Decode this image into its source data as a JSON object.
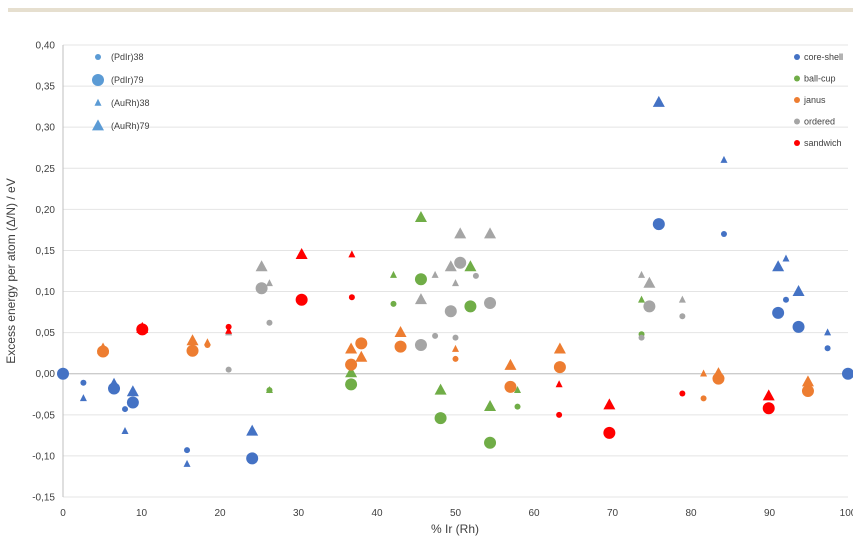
{
  "chart_data": {
    "type": "scatter",
    "xlabel": "% Ir (Rh)",
    "ylabel": "Excess energy per atom (Δ/N) / eV",
    "xlim": [
      0,
      100
    ],
    "ylim": [
      -0.15,
      0.4
    ],
    "x_ticks": [
      "0",
      "10",
      "20",
      "30",
      "40",
      "50",
      "60",
      "70",
      "80",
      "90",
      "100"
    ],
    "y_ticks": [
      "-0,15",
      "-0,10",
      "-0,05",
      "0,00",
      "0,05",
      "0,10",
      "0,15",
      "0,20",
      "0,25",
      "0,30",
      "0,35",
      "0,40"
    ],
    "grid": "horizontal",
    "legend_systems": {
      "placement": "top-left",
      "items": [
        {
          "label": "(PdIr)38",
          "marker": "circle",
          "size": "small"
        },
        {
          "label": "(PdIr)79",
          "marker": "circle",
          "size": "large"
        },
        {
          "label": "(AuRh)38",
          "marker": "triangle",
          "size": "small"
        },
        {
          "label": "(AuRh)79",
          "marker": "triangle",
          "size": "large"
        }
      ]
    },
    "legend_types": {
      "placement": "top-right",
      "items": [
        {
          "label": "core-shell",
          "color": "#4472c4"
        },
        {
          "label": "ball-cup",
          "color": "#70ad47"
        },
        {
          "label": "janus",
          "color": "#ed7d31"
        },
        {
          "label": "ordered",
          "color": "#a5a5a5"
        },
        {
          "label": "sandwich",
          "color": "#ff0000"
        }
      ]
    },
    "points": [
      {
        "x": 0,
        "y": 0.0,
        "type": "core-shell",
        "marker": "circle",
        "size": "large"
      },
      {
        "x": 2.6,
        "y": -0.011,
        "type": "core-shell",
        "marker": "circle",
        "size": "small"
      },
      {
        "x": 2.6,
        "y": -0.03,
        "type": "core-shell",
        "marker": "triangle",
        "size": "small"
      },
      {
        "x": 6.5,
        "y": -0.018,
        "type": "core-shell",
        "marker": "circle",
        "size": "large"
      },
      {
        "x": 6.5,
        "y": -0.013,
        "type": "core-shell",
        "marker": "triangle",
        "size": "large"
      },
      {
        "x": 7.9,
        "y": -0.043,
        "type": "core-shell",
        "marker": "circle",
        "size": "small"
      },
      {
        "x": 7.9,
        "y": -0.07,
        "type": "core-shell",
        "marker": "triangle",
        "size": "small"
      },
      {
        "x": 8.9,
        "y": -0.035,
        "type": "core-shell",
        "marker": "circle",
        "size": "large"
      },
      {
        "x": 8.9,
        "y": -0.022,
        "type": "core-shell",
        "marker": "triangle",
        "size": "large"
      },
      {
        "x": 15.8,
        "y": -0.093,
        "type": "core-shell",
        "marker": "circle",
        "size": "small"
      },
      {
        "x": 15.8,
        "y": -0.11,
        "type": "core-shell",
        "marker": "triangle",
        "size": "small"
      },
      {
        "x": 24.1,
        "y": -0.103,
        "type": "core-shell",
        "marker": "circle",
        "size": "large"
      },
      {
        "x": 24.1,
        "y": -0.07,
        "type": "core-shell",
        "marker": "triangle",
        "size": "large"
      },
      {
        "x": 75.9,
        "y": 0.182,
        "type": "core-shell",
        "marker": "circle",
        "size": "large"
      },
      {
        "x": 75.9,
        "y": 0.33,
        "type": "core-shell",
        "marker": "triangle",
        "size": "large"
      },
      {
        "x": 84.2,
        "y": 0.17,
        "type": "core-shell",
        "marker": "circle",
        "size": "small"
      },
      {
        "x": 84.2,
        "y": 0.26,
        "type": "core-shell",
        "marker": "triangle",
        "size": "small"
      },
      {
        "x": 91.1,
        "y": 0.074,
        "type": "core-shell",
        "marker": "circle",
        "size": "large"
      },
      {
        "x": 91.1,
        "y": 0.13,
        "type": "core-shell",
        "marker": "triangle",
        "size": "large"
      },
      {
        "x": 92.1,
        "y": 0.09,
        "type": "core-shell",
        "marker": "circle",
        "size": "small"
      },
      {
        "x": 92.1,
        "y": 0.14,
        "type": "core-shell",
        "marker": "triangle",
        "size": "small"
      },
      {
        "x": 93.7,
        "y": 0.057,
        "type": "core-shell",
        "marker": "circle",
        "size": "large"
      },
      {
        "x": 93.7,
        "y": 0.1,
        "type": "core-shell",
        "marker": "triangle",
        "size": "large"
      },
      {
        "x": 97.4,
        "y": 0.031,
        "type": "core-shell",
        "marker": "circle",
        "size": "small"
      },
      {
        "x": 97.4,
        "y": 0.05,
        "type": "core-shell",
        "marker": "triangle",
        "size": "small"
      },
      {
        "x": 100,
        "y": 0.0,
        "type": "core-shell",
        "marker": "circle",
        "size": "large"
      },
      {
        "x": 26.3,
        "y": -0.02,
        "type": "ball-cup",
        "marker": "circle",
        "size": "small"
      },
      {
        "x": 26.3,
        "y": -0.02,
        "type": "ball-cup",
        "marker": "triangle",
        "size": "small"
      },
      {
        "x": 36.7,
        "y": -0.013,
        "type": "ball-cup",
        "marker": "circle",
        "size": "large"
      },
      {
        "x": 36.7,
        "y": 0.001,
        "type": "ball-cup",
        "marker": "triangle",
        "size": "large"
      },
      {
        "x": 42.1,
        "y": 0.085,
        "type": "ball-cup",
        "marker": "circle",
        "size": "small"
      },
      {
        "x": 42.1,
        "y": 0.12,
        "type": "ball-cup",
        "marker": "triangle",
        "size": "small"
      },
      {
        "x": 45.6,
        "y": 0.115,
        "type": "ball-cup",
        "marker": "circle",
        "size": "large"
      },
      {
        "x": 45.6,
        "y": 0.19,
        "type": "ball-cup",
        "marker": "triangle",
        "size": "large"
      },
      {
        "x": 48.1,
        "y": -0.054,
        "type": "ball-cup",
        "marker": "circle",
        "size": "large"
      },
      {
        "x": 48.1,
        "y": -0.02,
        "type": "ball-cup",
        "marker": "triangle",
        "size": "large"
      },
      {
        "x": 51.9,
        "y": 0.082,
        "type": "ball-cup",
        "marker": "circle",
        "size": "large"
      },
      {
        "x": 51.9,
        "y": 0.13,
        "type": "ball-cup",
        "marker": "triangle",
        "size": "large"
      },
      {
        "x": 54.4,
        "y": -0.084,
        "type": "ball-cup",
        "marker": "circle",
        "size": "large"
      },
      {
        "x": 54.4,
        "y": -0.04,
        "type": "ball-cup",
        "marker": "triangle",
        "size": "large"
      },
      {
        "x": 57.9,
        "y": -0.04,
        "type": "ball-cup",
        "marker": "circle",
        "size": "small"
      },
      {
        "x": 57.9,
        "y": -0.02,
        "type": "ball-cup",
        "marker": "triangle",
        "size": "small"
      },
      {
        "x": 73.7,
        "y": 0.048,
        "type": "ball-cup",
        "marker": "circle",
        "size": "small"
      },
      {
        "x": 73.7,
        "y": 0.09,
        "type": "ball-cup",
        "marker": "triangle",
        "size": "small"
      },
      {
        "x": 5.1,
        "y": 0.027,
        "type": "janus",
        "marker": "circle",
        "size": "large"
      },
      {
        "x": 5.1,
        "y": 0.03,
        "type": "janus",
        "marker": "triangle",
        "size": "large"
      },
      {
        "x": 16.5,
        "y": 0.028,
        "type": "janus",
        "marker": "circle",
        "size": "large"
      },
      {
        "x": 16.5,
        "y": 0.04,
        "type": "janus",
        "marker": "triangle",
        "size": "large"
      },
      {
        "x": 18.4,
        "y": 0.035,
        "type": "janus",
        "marker": "circle",
        "size": "small"
      },
      {
        "x": 18.4,
        "y": 0.038,
        "type": "janus",
        "marker": "triangle",
        "size": "small"
      },
      {
        "x": 36.7,
        "y": 0.011,
        "type": "janus",
        "marker": "circle",
        "size": "large"
      },
      {
        "x": 36.7,
        "y": 0.03,
        "type": "janus",
        "marker": "triangle",
        "size": "large"
      },
      {
        "x": 38.0,
        "y": 0.037,
        "type": "janus",
        "marker": "circle",
        "size": "large"
      },
      {
        "x": 38.0,
        "y": 0.02,
        "type": "janus",
        "marker": "triangle",
        "size": "large"
      },
      {
        "x": 43.0,
        "y": 0.033,
        "type": "janus",
        "marker": "circle",
        "size": "large"
      },
      {
        "x": 43.0,
        "y": 0.05,
        "type": "janus",
        "marker": "triangle",
        "size": "large"
      },
      {
        "x": 50.0,
        "y": 0.018,
        "type": "janus",
        "marker": "circle",
        "size": "small"
      },
      {
        "x": 50.0,
        "y": 0.03,
        "type": "janus",
        "marker": "triangle",
        "size": "small"
      },
      {
        "x": 57.0,
        "y": -0.016,
        "type": "janus",
        "marker": "circle",
        "size": "large"
      },
      {
        "x": 57.0,
        "y": 0.01,
        "type": "janus",
        "marker": "triangle",
        "size": "large"
      },
      {
        "x": 63.3,
        "y": 0.008,
        "type": "janus",
        "marker": "circle",
        "size": "large"
      },
      {
        "x": 63.3,
        "y": 0.03,
        "type": "janus",
        "marker": "triangle",
        "size": "large"
      },
      {
        "x": 81.6,
        "y": -0.03,
        "type": "janus",
        "marker": "circle",
        "size": "small"
      },
      {
        "x": 81.6,
        "y": 0.0,
        "type": "janus",
        "marker": "triangle",
        "size": "small"
      },
      {
        "x": 83.5,
        "y": -0.006,
        "type": "janus",
        "marker": "circle",
        "size": "large"
      },
      {
        "x": 83.5,
        "y": 0.0,
        "type": "janus",
        "marker": "triangle",
        "size": "large"
      },
      {
        "x": 94.9,
        "y": -0.021,
        "type": "janus",
        "marker": "circle",
        "size": "large"
      },
      {
        "x": 94.9,
        "y": -0.01,
        "type": "janus",
        "marker": "triangle",
        "size": "large"
      },
      {
        "x": 21.1,
        "y": 0.005,
        "type": "ordered",
        "marker": "circle",
        "size": "small"
      },
      {
        "x": 21.1,
        "y": 0.05,
        "type": "ordered",
        "marker": "triangle",
        "size": "small"
      },
      {
        "x": 25.3,
        "y": 0.104,
        "type": "ordered",
        "marker": "circle",
        "size": "large"
      },
      {
        "x": 25.3,
        "y": 0.13,
        "type": "ordered",
        "marker": "triangle",
        "size": "large"
      },
      {
        "x": 26.3,
        "y": 0.062,
        "type": "ordered",
        "marker": "circle",
        "size": "small"
      },
      {
        "x": 26.3,
        "y": 0.11,
        "type": "ordered",
        "marker": "triangle",
        "size": "small"
      },
      {
        "x": 45.6,
        "y": 0.035,
        "type": "ordered",
        "marker": "circle",
        "size": "large"
      },
      {
        "x": 45.6,
        "y": 0.09,
        "type": "ordered",
        "marker": "triangle",
        "size": "large"
      },
      {
        "x": 47.4,
        "y": 0.046,
        "type": "ordered",
        "marker": "circle",
        "size": "small"
      },
      {
        "x": 47.4,
        "y": 0.12,
        "type": "ordered",
        "marker": "triangle",
        "size": "small"
      },
      {
        "x": 49.4,
        "y": 0.076,
        "type": "ordered",
        "marker": "circle",
        "size": "large"
      },
      {
        "x": 49.4,
        "y": 0.13,
        "type": "ordered",
        "marker": "triangle",
        "size": "large"
      },
      {
        "x": 50.0,
        "y": 0.044,
        "type": "ordered",
        "marker": "circle",
        "size": "small"
      },
      {
        "x": 50.0,
        "y": 0.11,
        "type": "ordered",
        "marker": "triangle",
        "size": "small"
      },
      {
        "x": 50.6,
        "y": 0.135,
        "type": "ordered",
        "marker": "circle",
        "size": "large"
      },
      {
        "x": 50.6,
        "y": 0.17,
        "type": "ordered",
        "marker": "triangle",
        "size": "large"
      },
      {
        "x": 52.6,
        "y": 0.119,
        "type": "ordered",
        "marker": "circle",
        "size": "small"
      },
      {
        "x": 54.4,
        "y": 0.086,
        "type": "ordered",
        "marker": "circle",
        "size": "large"
      },
      {
        "x": 54.4,
        "y": 0.17,
        "type": "ordered",
        "marker": "triangle",
        "size": "large"
      },
      {
        "x": 73.7,
        "y": 0.044,
        "type": "ordered",
        "marker": "circle",
        "size": "small"
      },
      {
        "x": 73.7,
        "y": 0.12,
        "type": "ordered",
        "marker": "triangle",
        "size": "small"
      },
      {
        "x": 74.7,
        "y": 0.082,
        "type": "ordered",
        "marker": "circle",
        "size": "large"
      },
      {
        "x": 74.7,
        "y": 0.11,
        "type": "ordered",
        "marker": "triangle",
        "size": "large"
      },
      {
        "x": 78.9,
        "y": 0.07,
        "type": "ordered",
        "marker": "circle",
        "size": "small"
      },
      {
        "x": 78.9,
        "y": 0.09,
        "type": "ordered",
        "marker": "triangle",
        "size": "small"
      },
      {
        "x": 10.1,
        "y": 0.054,
        "type": "sandwich",
        "marker": "circle",
        "size": "large"
      },
      {
        "x": 10.1,
        "y": 0.055,
        "type": "sandwich",
        "marker": "triangle",
        "size": "large"
      },
      {
        "x": 21.1,
        "y": 0.057,
        "type": "sandwich",
        "marker": "circle",
        "size": "small"
      },
      {
        "x": 21.1,
        "y": 0.052,
        "type": "sandwich",
        "marker": "triangle",
        "size": "small"
      },
      {
        "x": 30.4,
        "y": 0.09,
        "type": "sandwich",
        "marker": "circle",
        "size": "large"
      },
      {
        "x": 30.4,
        "y": 0.145,
        "type": "sandwich",
        "marker": "triangle",
        "size": "large"
      },
      {
        "x": 36.8,
        "y": 0.093,
        "type": "sandwich",
        "marker": "circle",
        "size": "small"
      },
      {
        "x": 36.8,
        "y": 0.145,
        "type": "sandwich",
        "marker": "triangle",
        "size": "small"
      },
      {
        "x": 63.2,
        "y": -0.05,
        "type": "sandwich",
        "marker": "circle",
        "size": "small"
      },
      {
        "x": 63.2,
        "y": -0.013,
        "type": "sandwich",
        "marker": "triangle",
        "size": "small"
      },
      {
        "x": 69.6,
        "y": -0.072,
        "type": "sandwich",
        "marker": "circle",
        "size": "large"
      },
      {
        "x": 69.6,
        "y": -0.038,
        "type": "sandwich",
        "marker": "triangle",
        "size": "large"
      },
      {
        "x": 78.9,
        "y": -0.024,
        "type": "sandwich",
        "marker": "circle",
        "size": "small"
      },
      {
        "x": 89.9,
        "y": -0.042,
        "type": "sandwich",
        "marker": "circle",
        "size": "large"
      },
      {
        "x": 89.9,
        "y": -0.027,
        "type": "sandwich",
        "marker": "triangle",
        "size": "large"
      }
    ]
  }
}
